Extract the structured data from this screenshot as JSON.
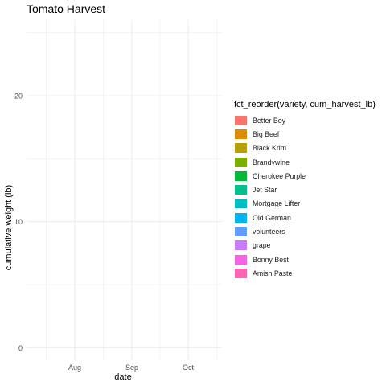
{
  "chart_data": {
    "type": "area",
    "title": "Tomato Harvest",
    "xlabel": "date",
    "ylabel": "cumulative weight (lb)",
    "x_ticks": [
      "Aug",
      "Sep",
      "Oct"
    ],
    "y_ticks": [
      0,
      10,
      20
    ],
    "ylim": [
      -1,
      26
    ],
    "grid": true,
    "legend_title": "fct_reorder(variety, cum_harvest_lb)",
    "legend_position": "right",
    "series": [
      {
        "name": "Better Boy",
        "color": "#F8766D"
      },
      {
        "name": "Big Beef",
        "color": "#DE8C00"
      },
      {
        "name": "Black Krim",
        "color": "#B79F00"
      },
      {
        "name": "Brandywine",
        "color": "#7CAE00"
      },
      {
        "name": "Cherokee Purple",
        "color": "#00BA38"
      },
      {
        "name": "Jet Star",
        "color": "#00C08B"
      },
      {
        "name": "Mortgage Lifter",
        "color": "#00BFC4"
      },
      {
        "name": "Old German",
        "color": "#00B4F0"
      },
      {
        "name": "volunteers",
        "color": "#619CFF"
      },
      {
        "name": "grape",
        "color": "#C77CFF"
      },
      {
        "name": "Bonny Best",
        "color": "#F564E3"
      },
      {
        "name": "Amish Paste",
        "color": "#FF64B0"
      }
    ]
  }
}
